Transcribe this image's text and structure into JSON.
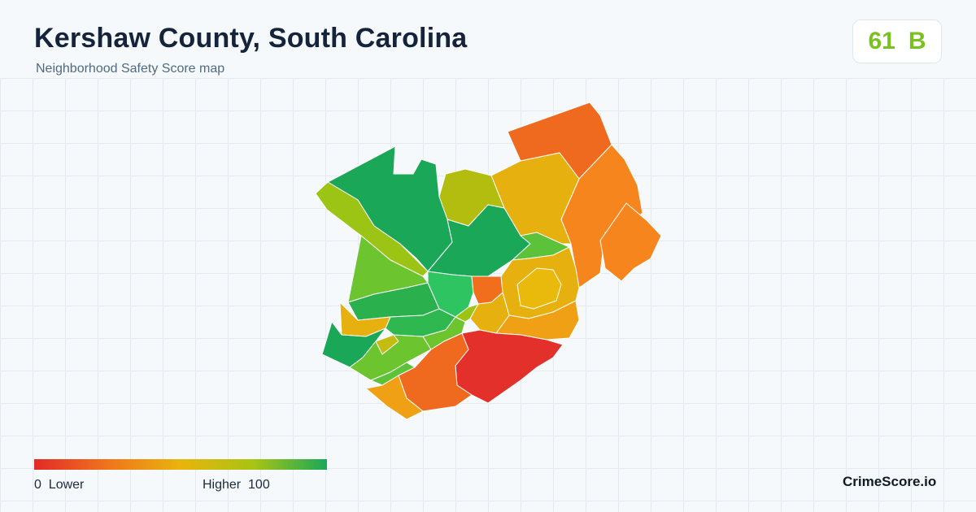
{
  "header": {
    "title": "Kershaw County, South Carolina",
    "subtitle": "Neighborhood Safety Score map"
  },
  "score": {
    "value": "61",
    "grade": "B",
    "color": "#7ac01e"
  },
  "legend": {
    "min": "0",
    "min_label": "Lower",
    "max_label": "Higher",
    "max": "100",
    "colors": [
      "#e22a28",
      "#f0741c",
      "#e9b40c",
      "#a8c414",
      "#1aa858"
    ]
  },
  "brand": "CrimeScore.io"
}
